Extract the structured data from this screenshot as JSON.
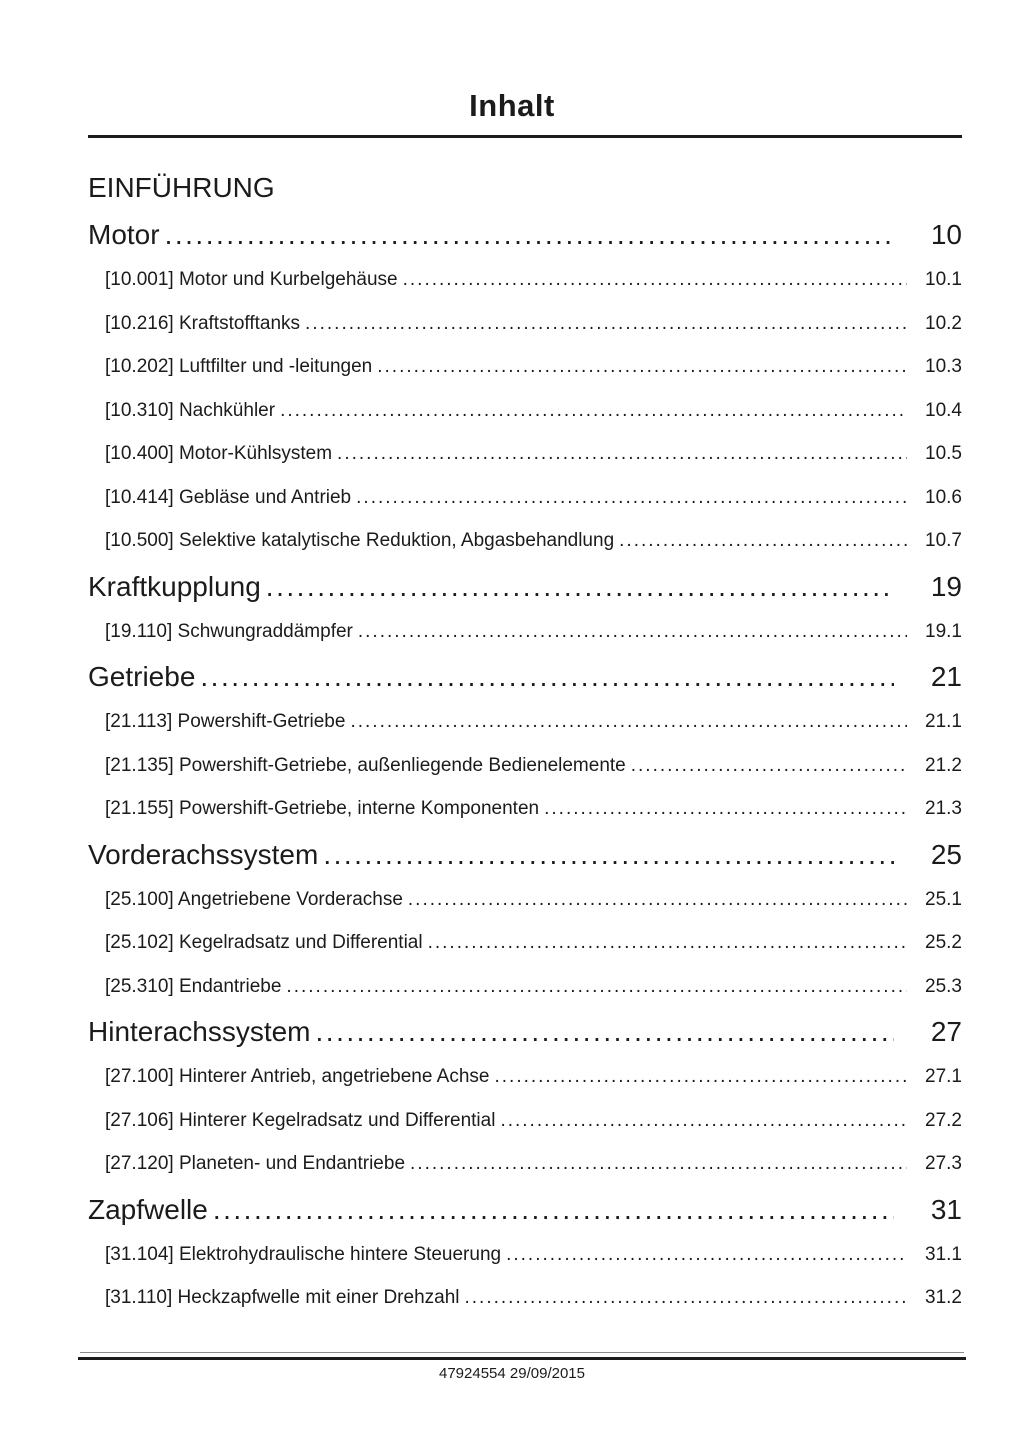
{
  "page": {
    "title": "Inhalt",
    "footer": "47924554 29/09/2015"
  },
  "toc": {
    "intro_heading": "EINFÜHRUNG",
    "sections": [
      {
        "label": "Motor",
        "page": "10",
        "items": [
          {
            "label": "[10.001] Motor und Kurbelgehäuse",
            "page": "10.1"
          },
          {
            "label": "[10.216] Kraftstofftanks",
            "page": "10.2"
          },
          {
            "label": "[10.202] Luftfilter und -leitungen",
            "page": "10.3"
          },
          {
            "label": "[10.310] Nachkühler",
            "page": "10.4"
          },
          {
            "label": "[10.400] Motor-Kühlsystem",
            "page": "10.5"
          },
          {
            "label": "[10.414] Gebläse und Antrieb",
            "page": "10.6"
          },
          {
            "label": "[10.500] Selektive katalytische Reduktion, Abgasbehandlung",
            "page": "10.7"
          }
        ]
      },
      {
        "label": "Kraftkupplung",
        "page": "19",
        "items": [
          {
            "label": "[19.110] Schwungraddämpfer",
            "page": "19.1"
          }
        ]
      },
      {
        "label": "Getriebe",
        "page": "21",
        "items": [
          {
            "label": "[21.113] Powershift-Getriebe",
            "page": "21.1"
          },
          {
            "label": "[21.135] Powershift-Getriebe, außenliegende Bedienelemente",
            "page": "21.2"
          },
          {
            "label": "[21.155] Powershift-Getriebe, interne Komponenten",
            "page": "21.3"
          }
        ]
      },
      {
        "label": "Vorderachssystem",
        "page": "25",
        "items": [
          {
            "label": "[25.100] Angetriebene Vorderachse",
            "page": "25.1"
          },
          {
            "label": "[25.102] Kegelradsatz und Differential",
            "page": "25.2"
          },
          {
            "label": "[25.310] Endantriebe",
            "page": "25.3"
          }
        ]
      },
      {
        "label": "Hinterachssystem",
        "page": "27",
        "items": [
          {
            "label": "[27.100] Hinterer Antrieb, angetriebene Achse",
            "page": "27.1"
          },
          {
            "label": "[27.106] Hinterer Kegelradsatz und Differential",
            "page": "27.2"
          },
          {
            "label": "[27.120] Planeten- und Endantriebe",
            "page": "27.3"
          }
        ]
      },
      {
        "label": "Zapfwelle",
        "page": "31",
        "items": [
          {
            "label": "[31.104] Elektrohydraulische hintere Steuerung",
            "page": "31.1"
          },
          {
            "label": "[31.110] Heckzapfwelle mit einer Drehzahl",
            "page": "31.2"
          }
        ]
      }
    ]
  }
}
